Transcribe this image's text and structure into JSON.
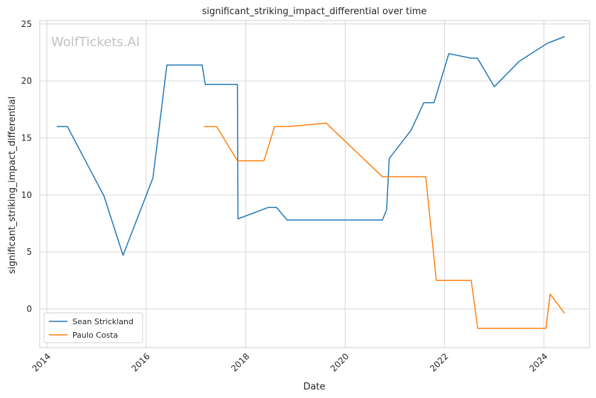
{
  "chart_data": {
    "type": "line",
    "title": "significant_striking_impact_differential over time",
    "xlabel": "Date",
    "ylabel": "significant_striking_impact_differential",
    "watermark": "WolfTickets.AI",
    "xlim": [
      "2013-11-10",
      "2024-12-01"
    ],
    "ylim": [
      -3.4,
      25.3
    ],
    "x_ticks": [
      "2014-01-01",
      "2016-01-01",
      "2018-01-01",
      "2020-01-01",
      "2022-01-01",
      "2024-01-01"
    ],
    "x_tick_labels": [
      "2014",
      "2016",
      "2018",
      "2020",
      "2022",
      "2024"
    ],
    "y_ticks": [
      0,
      5,
      10,
      15,
      20,
      25
    ],
    "y_tick_labels": [
      "0",
      "5",
      "10",
      "15",
      "20",
      "25"
    ],
    "grid": true,
    "legend_position": "lower-left",
    "series": [
      {
        "name": "Sean Strickland",
        "color": "#1f77b4",
        "points": [
          [
            "2014-03-15",
            16.0
          ],
          [
            "2014-06-01",
            16.0
          ],
          [
            "2015-02-25",
            9.9
          ],
          [
            "2015-07-15",
            4.7
          ],
          [
            "2016-02-20",
            11.5
          ],
          [
            "2016-06-01",
            21.4
          ],
          [
            "2017-02-15",
            21.4
          ],
          [
            "2017-03-10",
            19.7
          ],
          [
            "2017-11-01",
            19.7
          ],
          [
            "2017-11-05",
            7.9
          ],
          [
            "2018-06-15",
            8.9
          ],
          [
            "2018-08-15",
            8.9
          ],
          [
            "2018-11-01",
            7.8
          ],
          [
            "2020-10-01",
            7.8
          ],
          [
            "2020-11-01",
            8.7
          ],
          [
            "2020-11-20",
            13.2
          ],
          [
            "2021-05-01",
            15.7
          ],
          [
            "2021-08-01",
            18.1
          ],
          [
            "2021-10-15",
            18.1
          ],
          [
            "2022-02-01",
            22.4
          ],
          [
            "2022-07-15",
            22.0
          ],
          [
            "2022-08-30",
            22.0
          ],
          [
            "2023-01-01",
            19.5
          ],
          [
            "2023-07-01",
            21.7
          ],
          [
            "2023-09-15",
            22.3
          ],
          [
            "2024-01-25",
            23.3
          ],
          [
            "2024-02-15",
            23.4
          ],
          [
            "2024-06-01",
            23.9
          ]
        ]
      },
      {
        "name": "Paulo Costa",
        "color": "#ff7f0e",
        "points": [
          [
            "2017-03-01",
            16.0
          ],
          [
            "2017-06-01",
            16.0
          ],
          [
            "2017-11-01",
            13.0
          ],
          [
            "2018-05-15",
            13.0
          ],
          [
            "2018-08-01",
            16.0
          ],
          [
            "2018-11-15",
            16.0
          ],
          [
            "2019-08-15",
            16.3
          ],
          [
            "2020-10-01",
            11.6
          ],
          [
            "2021-08-15",
            11.6
          ],
          [
            "2021-11-01",
            2.5
          ],
          [
            "2022-07-15",
            2.5
          ],
          [
            "2022-09-01",
            -1.7
          ],
          [
            "2024-01-15",
            -1.7
          ],
          [
            "2024-02-15",
            1.3
          ],
          [
            "2024-06-01",
            -0.4
          ]
        ]
      }
    ]
  }
}
